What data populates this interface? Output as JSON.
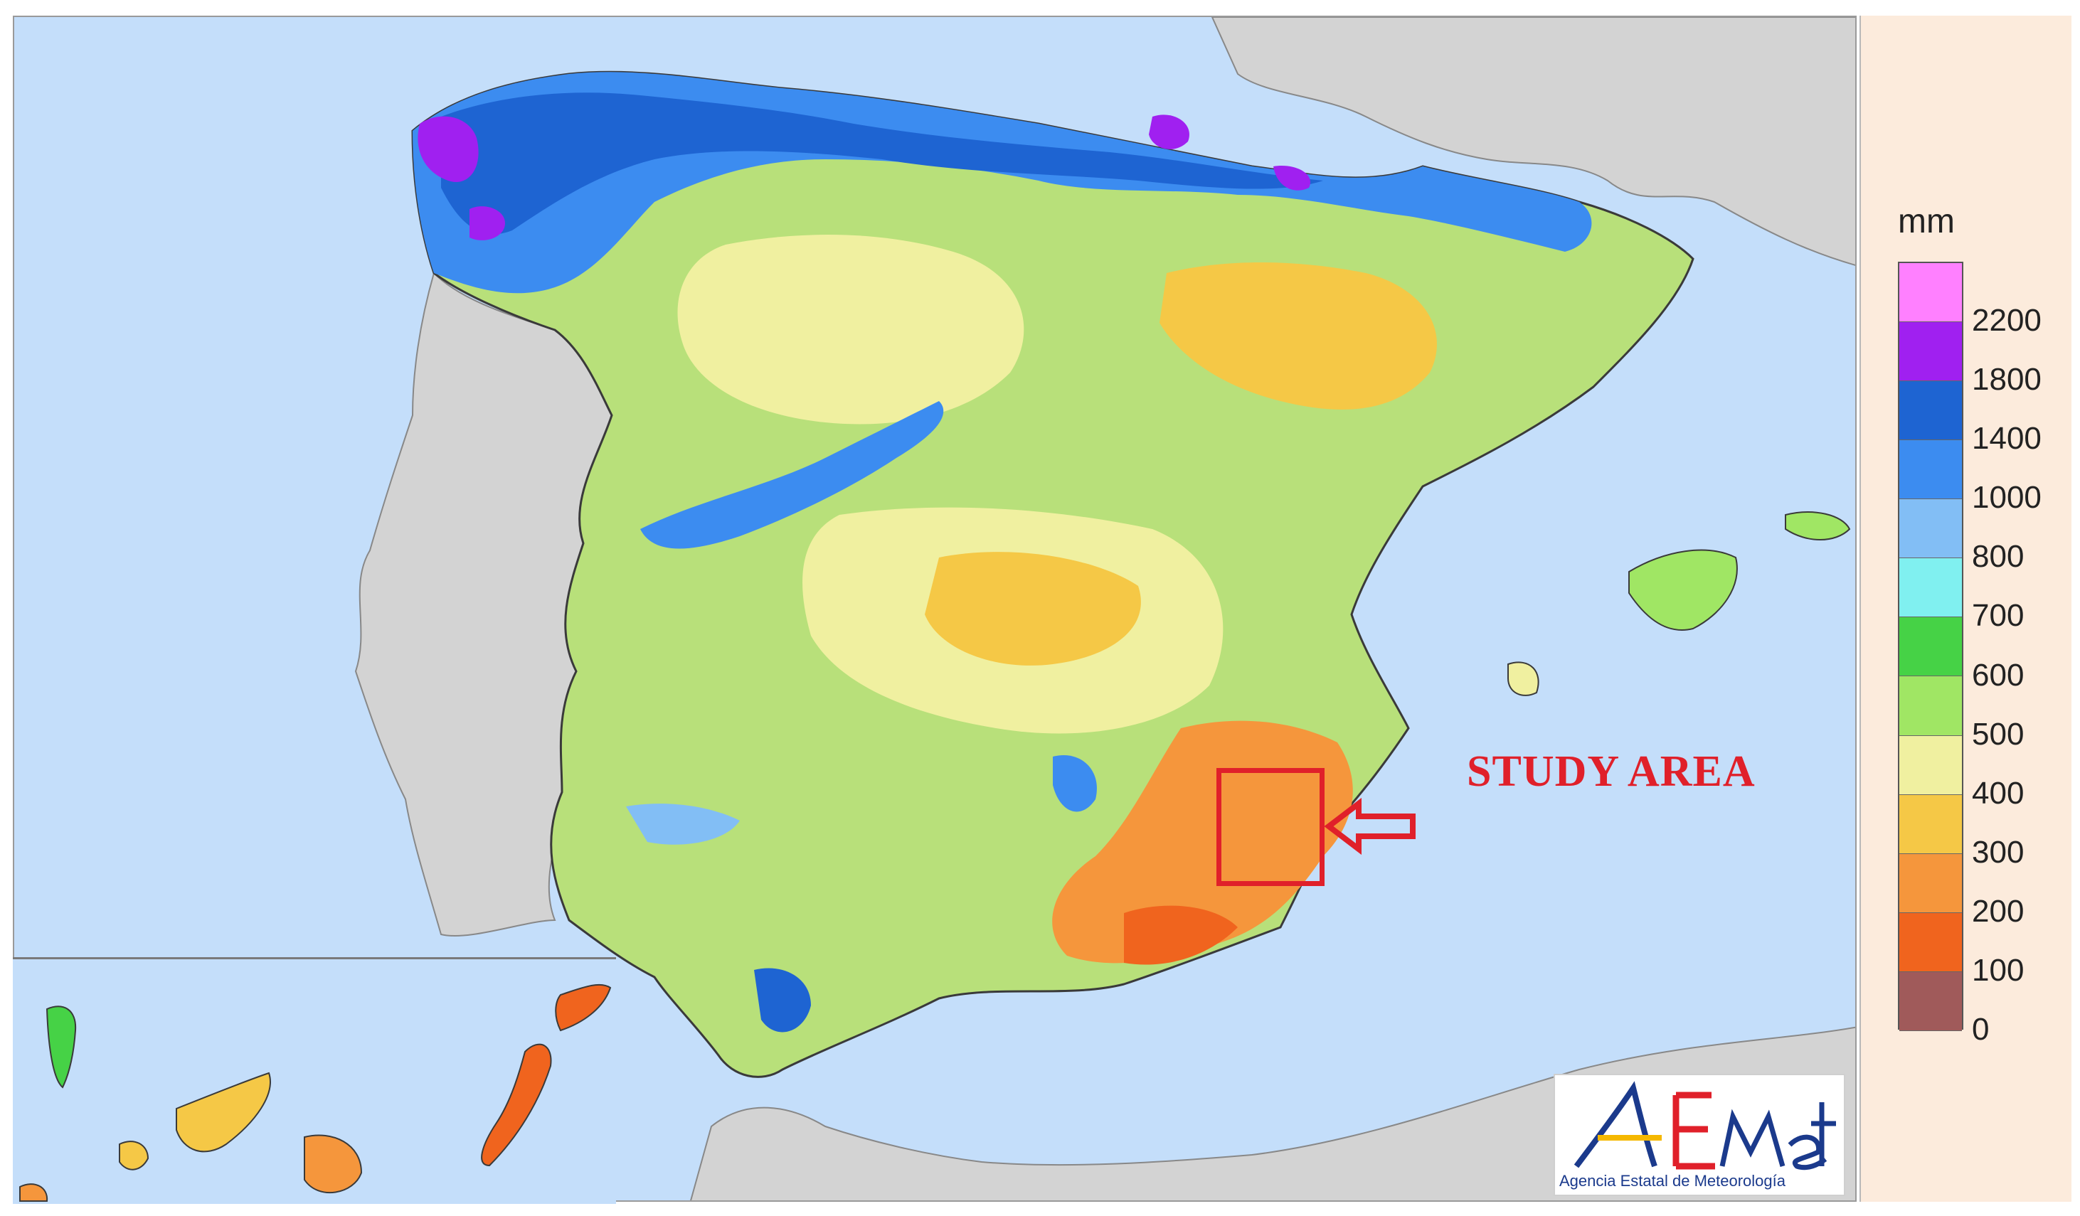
{
  "map": {
    "study_area_label": "STUDY AREA",
    "colors": {
      "sea": "#c4defa",
      "land_outside": "#d3d3d3",
      "border_line": "#3a3a3a",
      "study_marker": "#e0202a"
    }
  },
  "legend": {
    "unit": "mm",
    "ticks": [
      "2200",
      "1800",
      "1400",
      "1000",
      "800",
      "700",
      "600",
      "500",
      "400",
      "300",
      "200",
      "100",
      "0"
    ],
    "swatches": [
      "#ff80ff",
      "#a020f0",
      "#1e64d2",
      "#3c8cf0",
      "#82bef5",
      "#80f0f0",
      "#46d246",
      "#a0e664",
      "#f0f0a0",
      "#f5c846",
      "#f5963c",
      "#f0641e",
      "#a05a5a"
    ]
  },
  "logo": {
    "text_a": "AE",
    "text_b": "Met",
    "caption": "Agencia Estatal de Meteorología"
  }
}
